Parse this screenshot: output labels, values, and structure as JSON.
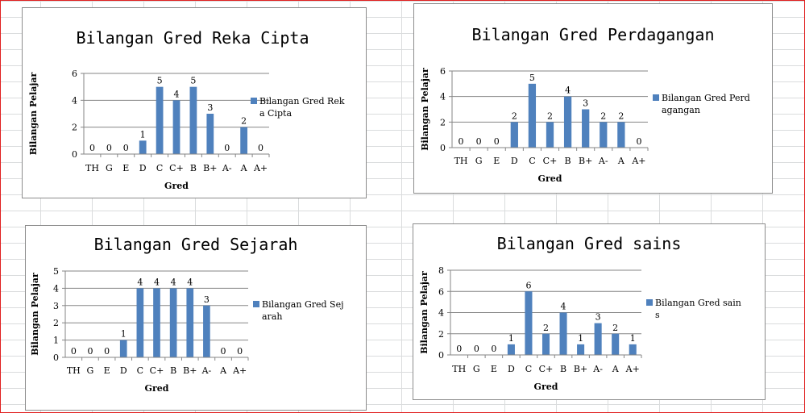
{
  "colors": {
    "bar": "#4f81bd",
    "grid": "#868686",
    "frame": "#e02020",
    "sheet_grid": "#dadcdd"
  },
  "chart_data": [
    {
      "type": "bar",
      "title": "Bilangan Gred Reka Cipta",
      "xlabel": "Gred",
      "ylabel": "Bilangan Pelajar",
      "categories": [
        "TH",
        "G",
        "E",
        "D",
        "C",
        "C+",
        "B",
        "B+",
        "A-",
        "A",
        "A+"
      ],
      "series": [
        {
          "name": "Bilangan Gred Reka Cipta",
          "values": [
            0,
            0,
            0,
            1,
            5,
            4,
            5,
            3,
            0,
            2,
            0
          ]
        }
      ],
      "ylim": [
        0,
        6
      ],
      "yticks": [
        0,
        2,
        4,
        6
      ],
      "legend_lines": [
        "Bilangan Gred Rek",
        "a Cipta"
      ],
      "legend": "right",
      "grid": true
    },
    {
      "type": "bar",
      "title": "Bilangan Gred Perdagangan",
      "xlabel": "Gred",
      "ylabel": "Bilangan Pelajar",
      "categories": [
        "TH",
        "G",
        "E",
        "D",
        "C",
        "C+",
        "B",
        "B+",
        "A-",
        "A",
        "A+"
      ],
      "series": [
        {
          "name": "Bilangan Gred Perdagangan",
          "values": [
            0,
            0,
            0,
            2,
            5,
            2,
            4,
            3,
            2,
            2,
            0
          ]
        }
      ],
      "ylim": [
        0,
        6
      ],
      "yticks": [
        0,
        2,
        4,
        6
      ],
      "legend_lines": [
        "Bilangan Gred Perd",
        "agangan"
      ],
      "legend": "right",
      "grid": true
    },
    {
      "type": "bar",
      "title": "Bilangan Gred Sejarah",
      "xlabel": "Gred",
      "ylabel": "Bilangan Pelajar",
      "categories": [
        "TH",
        "G",
        "E",
        "D",
        "C",
        "C+",
        "B",
        "B+",
        "A-",
        "A",
        "A+"
      ],
      "series": [
        {
          "name": "Bilangan Gred Sejarah",
          "values": [
            0,
            0,
            0,
            1,
            4,
            4,
            4,
            4,
            3,
            0,
            0
          ]
        }
      ],
      "ylim": [
        0,
        5
      ],
      "yticks": [
        0,
        1,
        2,
        3,
        4,
        5
      ],
      "legend_lines": [
        "Bilangan Gred Sej",
        "arah"
      ],
      "legend": "right",
      "grid": true
    },
    {
      "type": "bar",
      "title": "Bilangan Gred sains",
      "xlabel": "Gred",
      "ylabel": "Bilangan Pelajar",
      "categories": [
        "TH",
        "G",
        "E",
        "D",
        "C",
        "C+",
        "B",
        "B+",
        "A-",
        "A",
        "A+"
      ],
      "series": [
        {
          "name": "Bilangan Gred sains",
          "values": [
            0,
            0,
            0,
            1,
            6,
            2,
            4,
            1,
            3,
            2,
            1
          ]
        }
      ],
      "ylim": [
        0,
        8
      ],
      "yticks": [
        0,
        2,
        4,
        6,
        8
      ],
      "legend_lines": [
        "Bilangan Gred sain",
        "s"
      ],
      "legend": "right",
      "grid": true
    }
  ]
}
